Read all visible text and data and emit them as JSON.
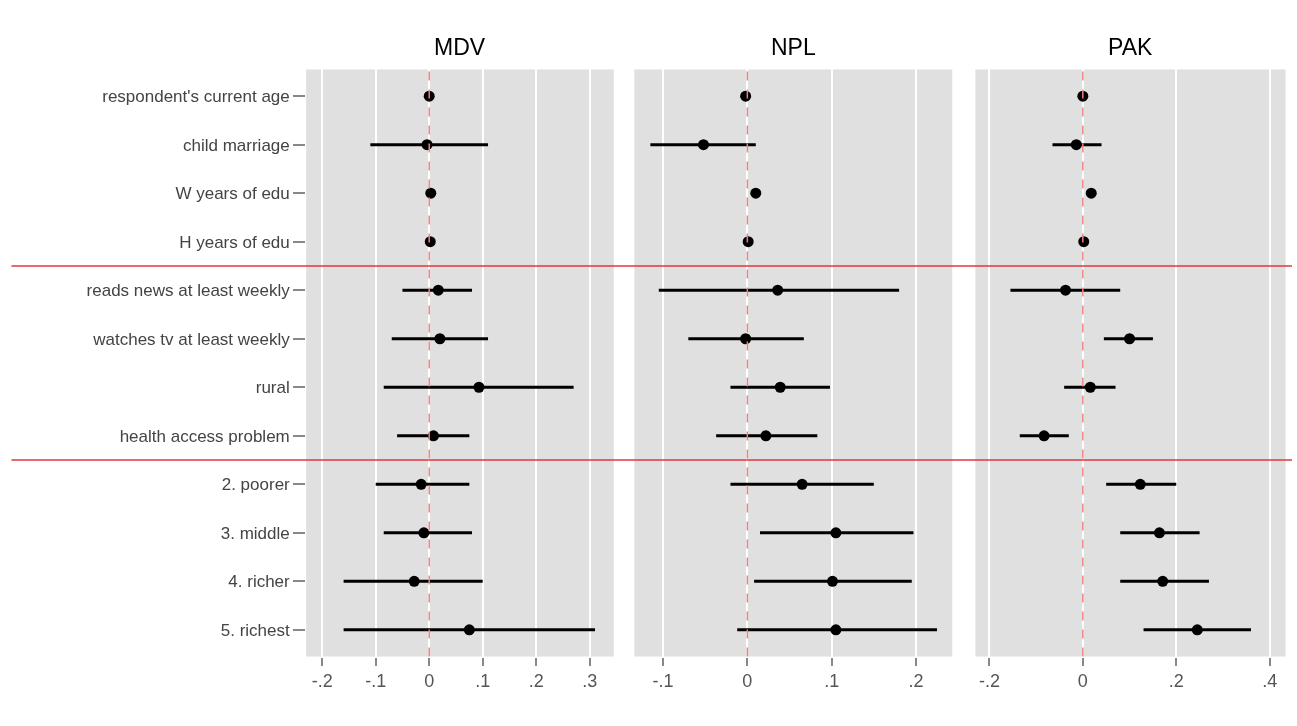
{
  "chart_data": [
    {
      "type": "scatter",
      "title": "MDV",
      "orientation": "horizontal",
      "categories": [
        "respondent's current age",
        "child marriage",
        "W years of edu",
        "H years of edu",
        "reads news at least weekly",
        "watches tv at least weekly",
        "rural",
        "health access problem",
        "2. poorer",
        "3. middle",
        "4. richer",
        "5. richest"
      ],
      "values": [
        0.0,
        -0.004,
        0.003,
        0.002,
        0.017,
        0.02,
        0.093,
        0.008,
        -0.015,
        -0.01,
        -0.028,
        0.075
      ],
      "errors": [
        null,
        [
          -0.11,
          0.11
        ],
        null,
        null,
        [
          -0.05,
          0.08
        ],
        [
          -0.07,
          0.11
        ],
        [
          -0.085,
          0.27
        ],
        [
          -0.06,
          0.075
        ],
        [
          -0.1,
          0.075
        ],
        [
          -0.085,
          0.08
        ],
        [
          -0.16,
          0.1
        ],
        [
          -0.16,
          0.31
        ]
      ],
      "color": "#000000",
      "marker": "circle",
      "grid": "x",
      "xlim": [
        -0.23,
        0.345
      ],
      "xticks": [
        {
          "value": -0.2,
          "label": "-.2"
        },
        {
          "value": -0.1,
          "label": "-.1"
        },
        0,
        {
          "value": 0.1,
          "label": ".1"
        },
        {
          "value": 0.2,
          "label": ".2"
        },
        {
          "value": 0.3,
          "label": ".3"
        }
      ],
      "ref_lines": [
        {
          "axis": "x",
          "value": 0,
          "color": "#f08080",
          "line_style": "dashed"
        }
      ]
    },
    {
      "type": "scatter",
      "title": "NPL",
      "orientation": "horizontal",
      "tick_labels": "x",
      "categories": [
        "respondent's current age",
        "child marriage",
        "W years of edu",
        "H years of edu",
        "reads news at least weekly",
        "watches tv at least weekly",
        "rural",
        "health access problem",
        "2. poorer",
        "3. middle",
        "4. richer",
        "5. richest"
      ],
      "values": [
        -0.002,
        -0.052,
        0.01,
        0.001,
        0.036,
        -0.002,
        0.039,
        0.022,
        0.065,
        0.105,
        0.101,
        0.105
      ],
      "errors": [
        null,
        [
          -0.115,
          0.01
        ],
        null,
        null,
        [
          -0.105,
          0.18
        ],
        [
          -0.07,
          0.067
        ],
        [
          -0.02,
          0.098
        ],
        [
          -0.037,
          0.083
        ],
        [
          -0.02,
          0.15
        ],
        [
          0.015,
          0.197
        ],
        [
          0.008,
          0.195
        ],
        [
          -0.012,
          0.225
        ]
      ],
      "color": "#000000",
      "marker": "circle",
      "grid": "x",
      "xlim": [
        -0.134,
        0.243
      ],
      "xticks": [
        {
          "value": -0.1,
          "label": "-.1"
        },
        0,
        {
          "value": 0.1,
          "label": ".1"
        },
        {
          "value": 0.2,
          "label": ".2"
        }
      ],
      "ref_lines": [
        {
          "axis": "x",
          "value": 0,
          "color": "#f08080",
          "line_style": "dashed"
        }
      ]
    },
    {
      "type": "scatter",
      "title": "PAK",
      "orientation": "horizontal",
      "tick_labels": "x",
      "categories": [
        "respondent's current age",
        "child marriage",
        "W years of edu",
        "H years of edu",
        "reads news at least weekly",
        "watches tv at least weekly",
        "rural",
        "health access problem",
        "2. poorer",
        "3. middle",
        "4. richer",
        "5. richest"
      ],
      "values": [
        0.0,
        -0.014,
        0.018,
        0.002,
        -0.037,
        0.1,
        0.016,
        -0.083,
        0.123,
        0.164,
        0.171,
        0.245
      ],
      "errors": [
        null,
        [
          -0.065,
          0.04
        ],
        null,
        null,
        [
          -0.155,
          0.08
        ],
        [
          0.045,
          0.15
        ],
        [
          -0.04,
          0.07
        ],
        [
          -0.135,
          -0.03
        ],
        [
          0.05,
          0.2
        ],
        [
          0.08,
          0.25
        ],
        [
          0.08,
          0.27
        ],
        [
          0.13,
          0.36
        ]
      ],
      "color": "#000000",
      "marker": "circle",
      "grid": "x",
      "xlim": [
        -0.23,
        0.434
      ],
      "xticks": [
        {
          "value": -0.2,
          "label": "-.2"
        },
        0,
        {
          "value": 0.2,
          "label": ".2"
        },
        {
          "value": 0.4,
          "label": ".4"
        }
      ],
      "ref_lines": [
        {
          "axis": "x",
          "value": 0,
          "color": "#f08080",
          "line_style": "dashed"
        }
      ]
    }
  ]
}
